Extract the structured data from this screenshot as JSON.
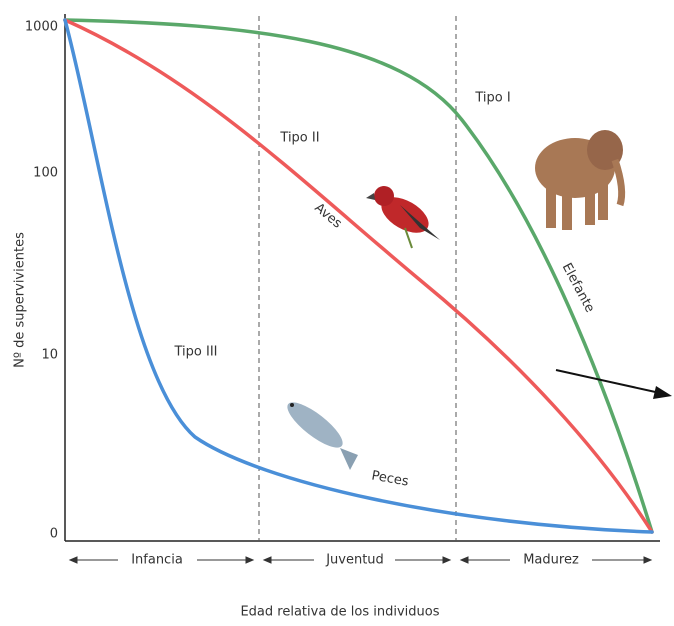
{
  "y_axis": {
    "label": "Nº de supervivientes",
    "ticks": [
      "1000",
      "100",
      "10",
      "0"
    ]
  },
  "x_axis": {
    "label": "Edad relativa de los individuos",
    "stages": [
      "Infancia",
      "Juventud",
      "Madurez"
    ]
  },
  "curves": [
    {
      "label": "Tipo I",
      "organism": "Elefante"
    },
    {
      "label": "Tipo II",
      "organism": "Aves"
    },
    {
      "label": "Tipo III",
      "organism": "Peces"
    }
  ]
}
